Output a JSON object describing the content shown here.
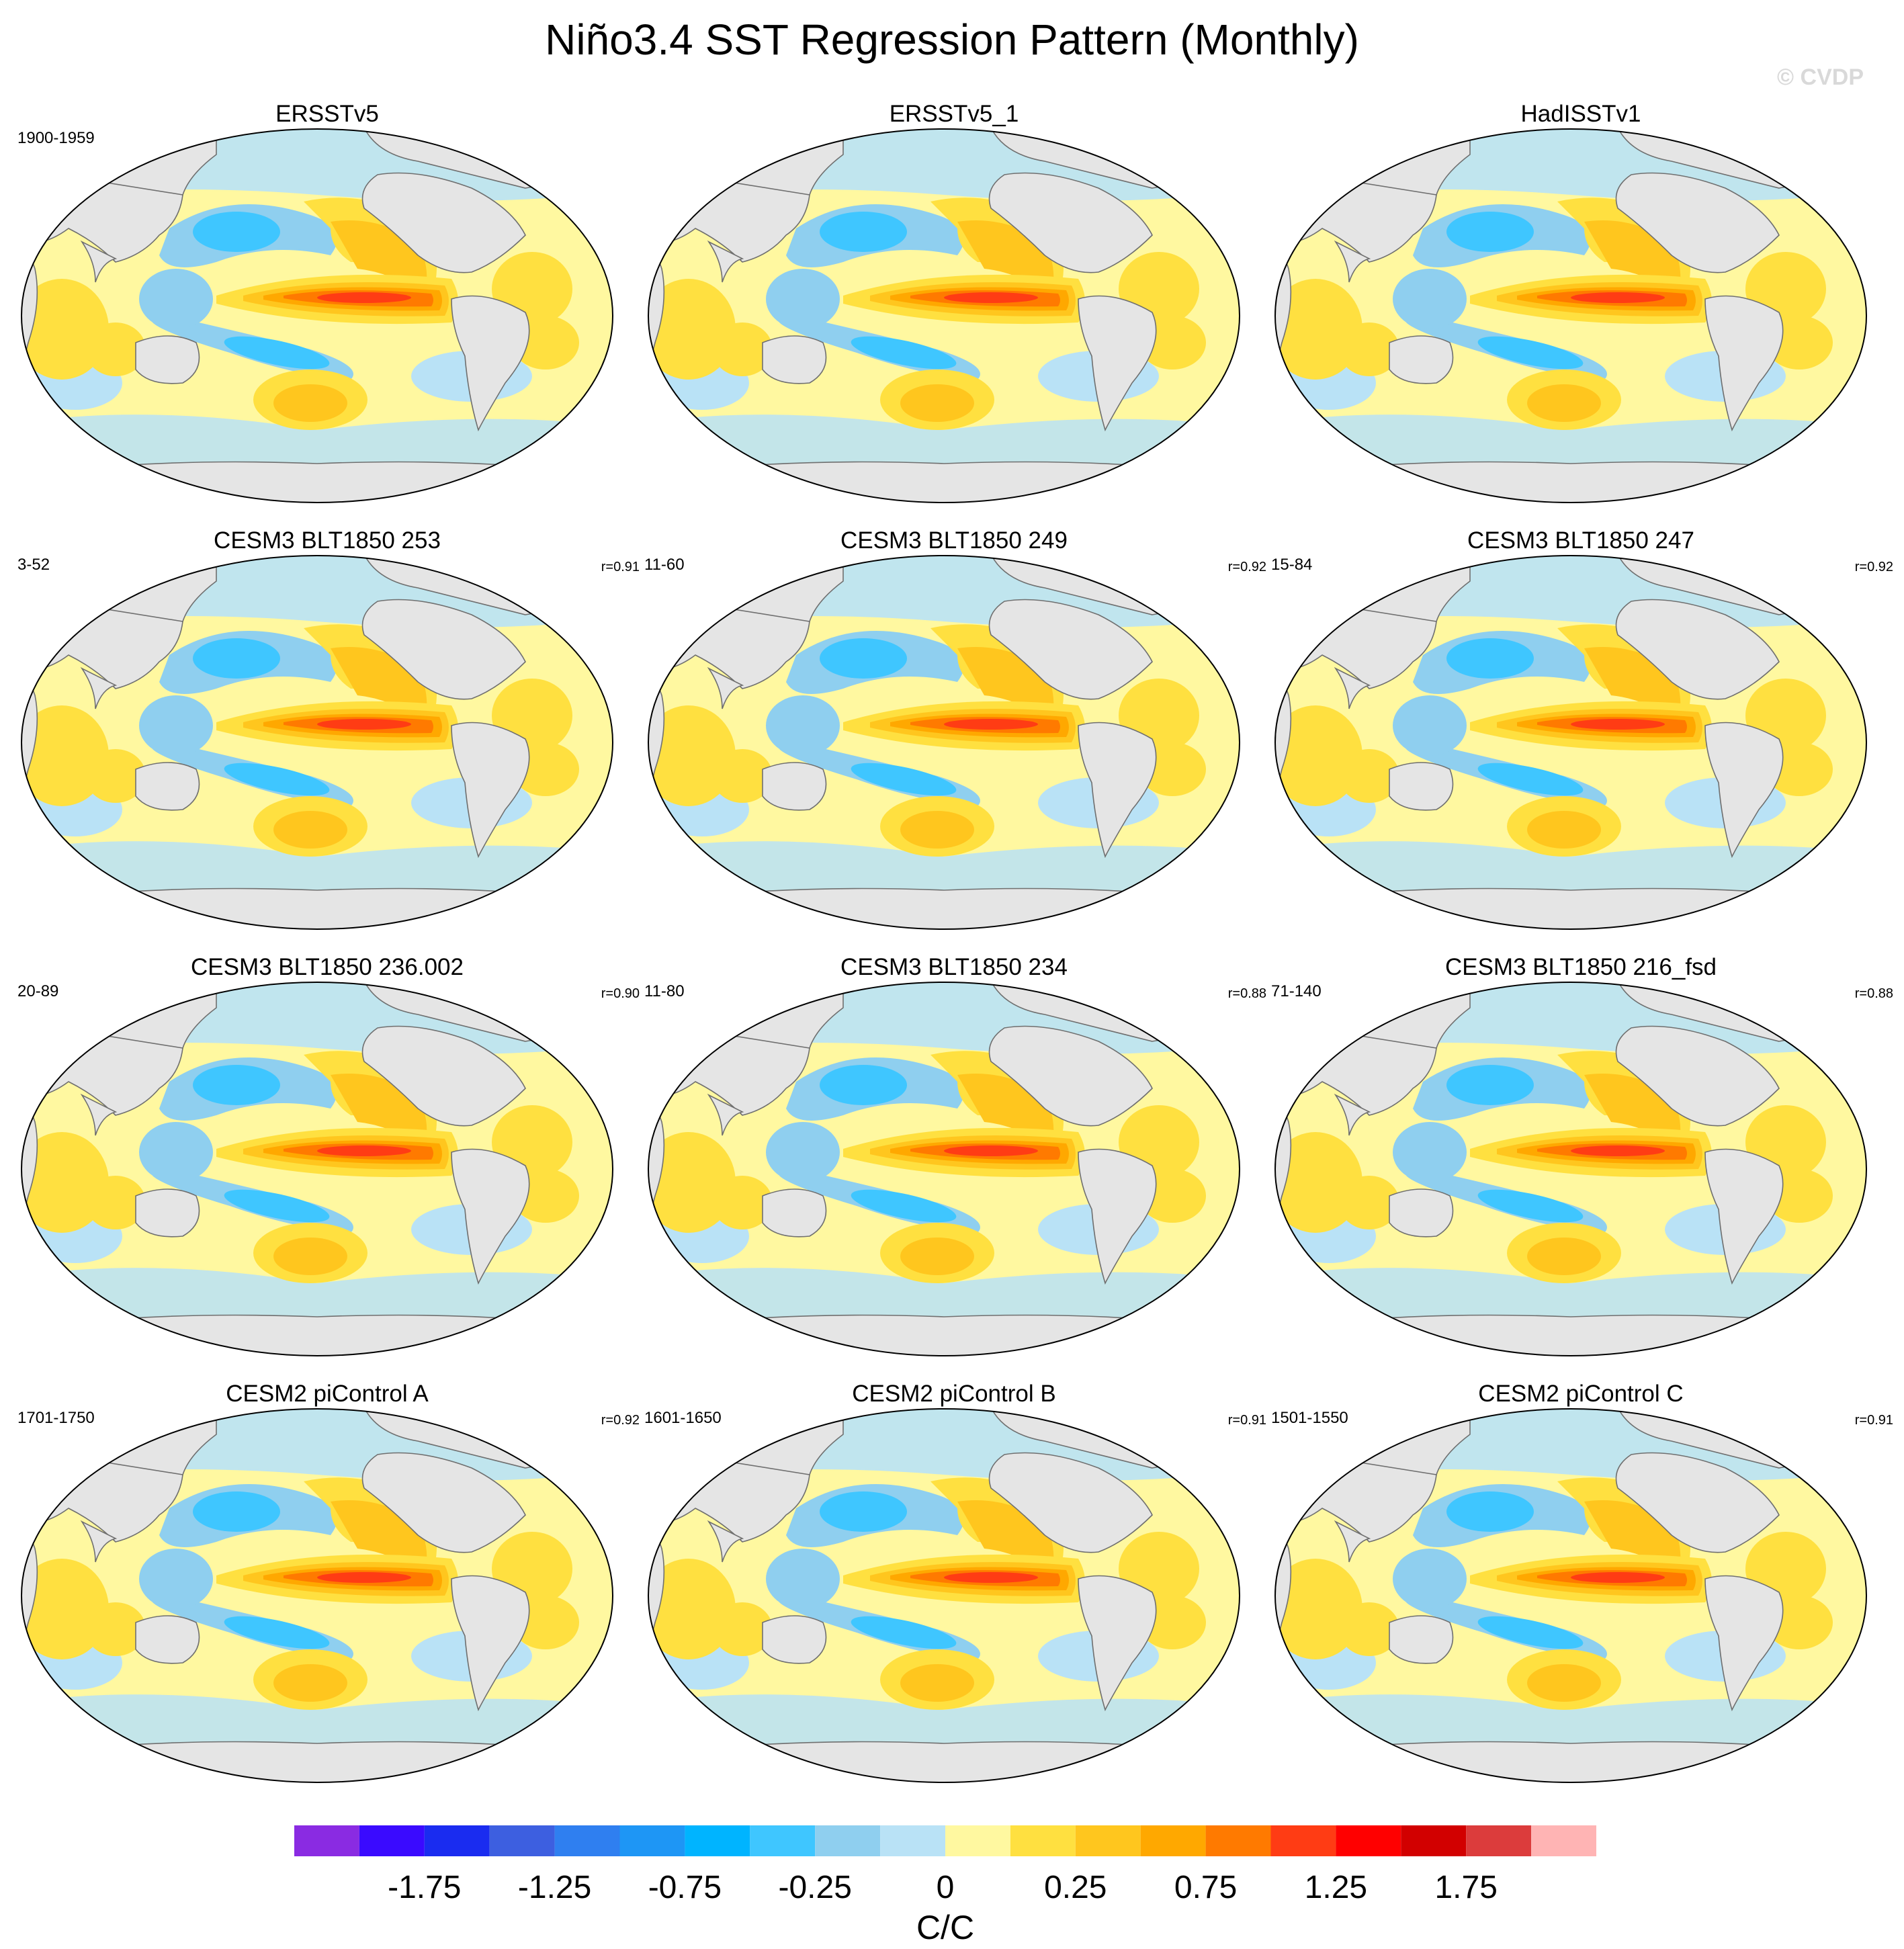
{
  "title": "Niño3.4 SST Regression Pattern (Monthly)",
  "credit": "© CVDP",
  "chart_data": {
    "type": "heatmap",
    "projection": "global map",
    "panels": [
      {
        "name": "ERSSTv5",
        "period": "1900-1959",
        "r": ""
      },
      {
        "name": "ERSSTv5_1",
        "period": "",
        "r": ""
      },
      {
        "name": "HadISSTv1",
        "period": "",
        "r": ""
      },
      {
        "name": "CESM3 BLT1850 253",
        "period": "3-52",
        "r": "r=0.91"
      },
      {
        "name": "CESM3 BLT1850 249",
        "period": "11-60",
        "r": "r=0.92"
      },
      {
        "name": "CESM3 BLT1850 247",
        "period": "15-84",
        "r": "r=0.92"
      },
      {
        "name": "CESM3 BLT1850 236.002",
        "period": "20-89",
        "r": "r=0.90"
      },
      {
        "name": "CESM3 BLT1850 234",
        "period": "11-80",
        "r": "r=0.88"
      },
      {
        "name": "CESM3 BLT1850 216_fsd",
        "period": "71-140",
        "r": "r=0.88"
      },
      {
        "name": "CESM2 piControl A",
        "period": "1701-1750",
        "r": "r=0.92"
      },
      {
        "name": "CESM2 piControl B",
        "period": "1601-1650",
        "r": "r=0.91"
      },
      {
        "name": "CESM2 piControl C",
        "period": "1501-1550",
        "r": "r=0.91"
      }
    ],
    "colorbar": {
      "label": "C/C",
      "tick_labels": [
        "-1.75",
        "-1.25",
        "-0.75",
        "-0.25",
        "0",
        "0.25",
        "0.75",
        "1.25",
        "1.75"
      ],
      "colors": [
        "#8a2be2",
        "#3a0aff",
        "#1a2cf0",
        "#3d5fe0",
        "#2f7ff0",
        "#1e96f5",
        "#00b4ff",
        "#3fc6ff",
        "#8fcfef",
        "#b9e2f6",
        "#fff8a0",
        "#ffe040",
        "#ffc61e",
        "#ffa800",
        "#ff7a00",
        "#ff3c14",
        "#ff0000",
        "#d20000",
        "#dc3c3c",
        "#ffb4b4"
      ]
    },
    "pattern_colors": {
      "land": "#e5e5e5",
      "neutral_pos": "#fff8a0",
      "neutral_neg": "#b9e2f6",
      "weak_pos": "#ffe040",
      "mod_pos": "#ffc61e",
      "strong_pos": "#ffa800",
      "stronger_pos": "#ff7a00",
      "peak_pos": "#ff3c14",
      "weak_neg": "#8fcfef",
      "mod_neg": "#3fc6ff"
    }
  }
}
